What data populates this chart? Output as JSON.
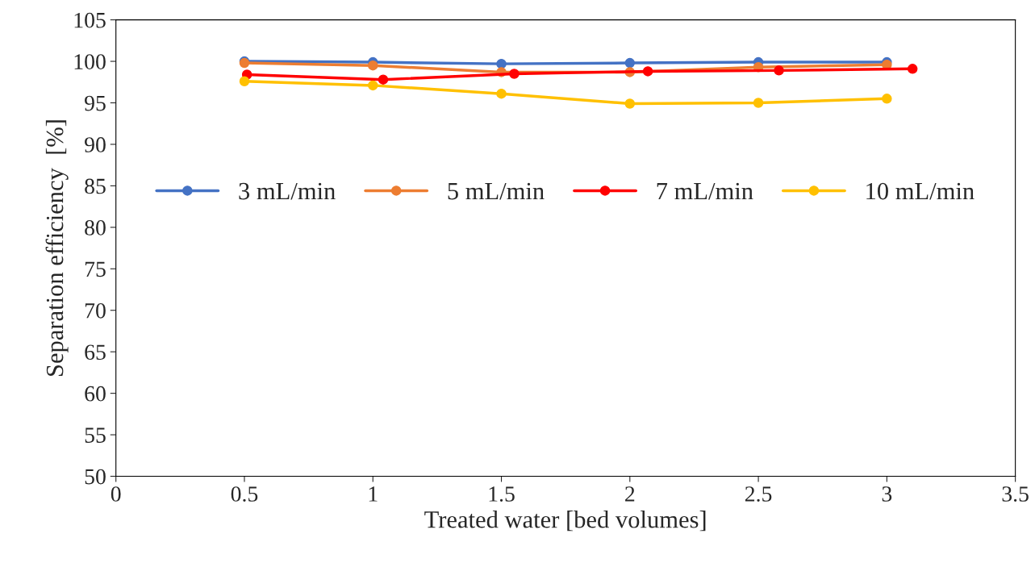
{
  "chart_data": {
    "type": "line",
    "xlabel": "Treated water [bed volumes]",
    "ylabel": "Separation efficiency  [%]",
    "xlim": [
      0,
      3.5
    ],
    "xticks": [
      0,
      0.5,
      1,
      1.5,
      2,
      2.5,
      3,
      3.5
    ],
    "ylim": [
      50,
      105
    ],
    "yticks": [
      50,
      55,
      60,
      65,
      70,
      75,
      80,
      85,
      90,
      95,
      100,
      105
    ],
    "grid": false,
    "legend": "center",
    "marker": "circle",
    "line_style": "solid",
    "series": [
      {
        "name": "3 mL/min",
        "color": "#4472c4",
        "x": [
          0.5,
          1,
          1.5,
          2,
          2.5,
          3
        ],
        "values": [
          100,
          99.9,
          99.7,
          99.8,
          99.9,
          99.9
        ]
      },
      {
        "name": "5 mL/min",
        "color": "#ed7d31",
        "x": [
          0.5,
          1,
          1.5,
          2,
          2.5,
          3
        ],
        "values": [
          99.8,
          99.5,
          98.7,
          98.7,
          99.3,
          99.6
        ]
      },
      {
        "name": "7 mL/min",
        "color": "#ff0000",
        "x": [
          0.51,
          1.04,
          1.55,
          2.07,
          2.58,
          3.1
        ],
        "values": [
          98.4,
          97.8,
          98.5,
          98.8,
          98.9,
          99.1
        ]
      },
      {
        "name": "10 mL/min",
        "color": "#ffc000",
        "x": [
          0.5,
          1,
          1.5,
          2,
          2.5,
          3
        ],
        "values": [
          97.6,
          97.1,
          96.1,
          94.9,
          95.0,
          95.5
        ]
      }
    ]
  }
}
